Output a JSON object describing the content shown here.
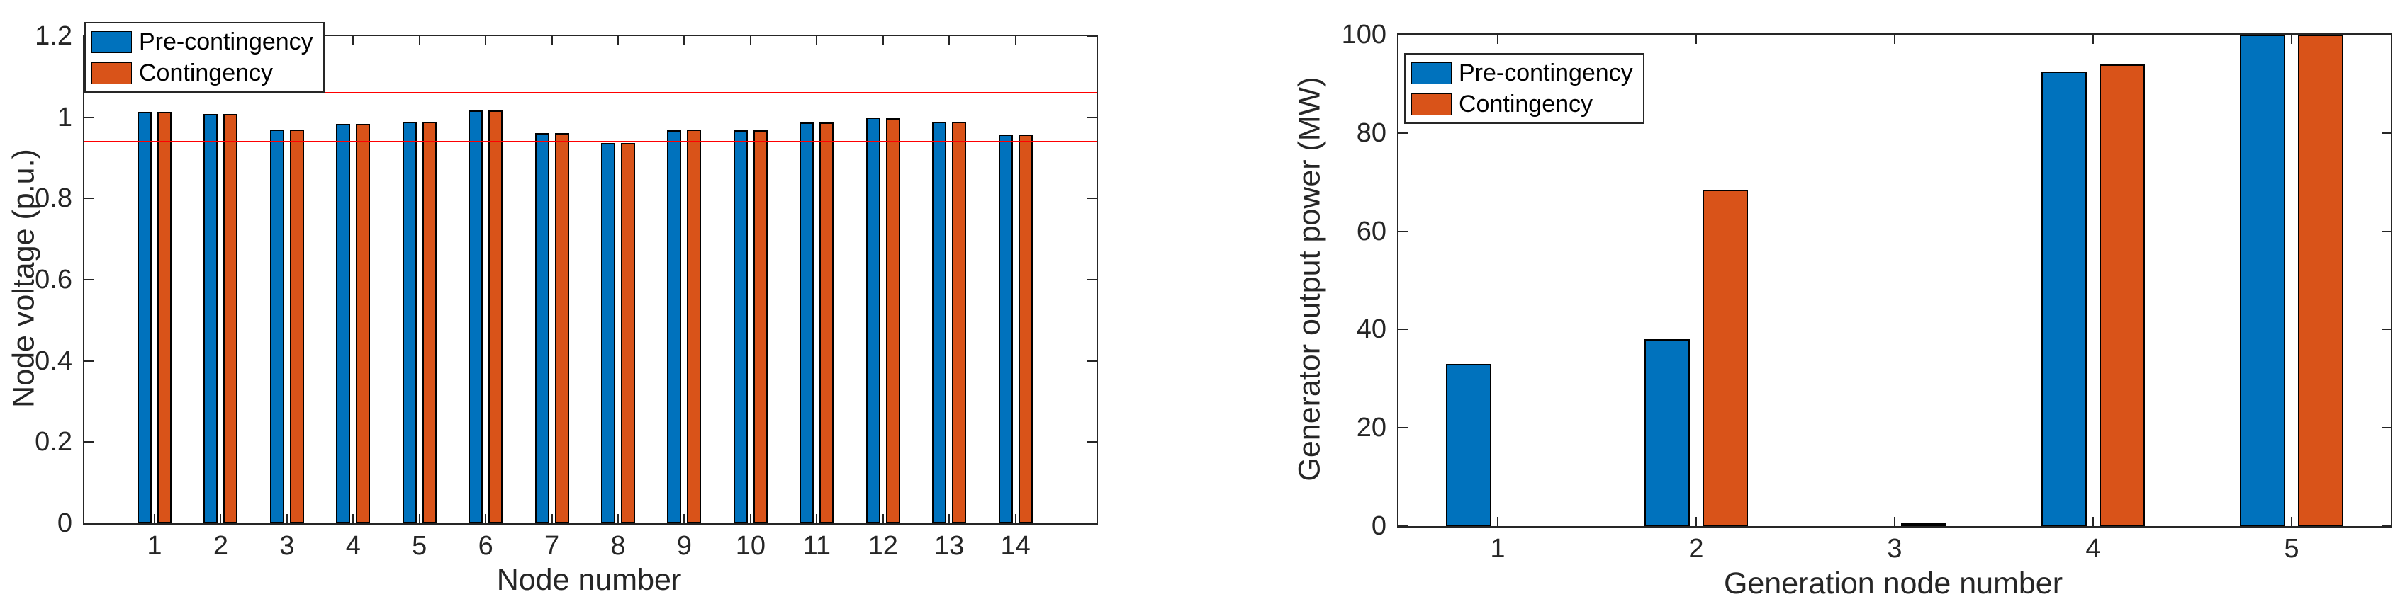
{
  "figure": {
    "background": "#FFFFFF"
  },
  "colors": {
    "pre_contingency": "#0072BD",
    "contingency": "#D95319",
    "limit_line": "#FF0000",
    "axis": "#262626",
    "bar_edge": "#000000"
  },
  "legend": {
    "pre_label": "Pre-contingency",
    "cont_label": "Contingency"
  },
  "chart_data": [
    {
      "type": "bar",
      "title": "",
      "xlabel": "Node number",
      "ylabel": "Node voltage (p.u.)",
      "categories": [
        "1",
        "2",
        "3",
        "4",
        "5",
        "6",
        "7",
        "8",
        "9",
        "10",
        "11",
        "12",
        "13",
        "14"
      ],
      "series": [
        {
          "name": "Pre-contingency",
          "color": "#0072BD",
          "values": [
            1.014,
            1.009,
            0.97,
            0.984,
            0.989,
            1.016,
            0.961,
            0.937,
            0.968,
            0.968,
            0.988,
            0.999,
            0.989,
            0.957
          ]
        },
        {
          "name": "Contingency",
          "color": "#D95319",
          "values": [
            1.013,
            1.008,
            0.97,
            0.983,
            0.989,
            1.016,
            0.961,
            0.937,
            0.97,
            0.968,
            0.988,
            0.998,
            0.989,
            0.957
          ]
        }
      ],
      "ylim": [
        0,
        1.2
      ],
      "yticks": [
        0,
        0.2,
        0.4,
        0.6,
        0.8,
        1,
        1.2
      ],
      "ytick_labels": [
        "0",
        "0.2",
        "0.4",
        "0.6",
        "0.8",
        "1",
        "1.2"
      ],
      "limit_lines": [
        1.06,
        0.94
      ],
      "legend_position": "top-left",
      "grid": false
    },
    {
      "type": "bar",
      "title": "",
      "xlabel": "Generation node number",
      "ylabel": "Generator output power (MW)",
      "categories": [
        "1",
        "2",
        "3",
        "4",
        "5"
      ],
      "series": [
        {
          "name": "Pre-contingency",
          "color": "#0072BD",
          "values": [
            33,
            38,
            0,
            92.5,
            100
          ]
        },
        {
          "name": "Contingency",
          "color": "#D95319",
          "values": [
            0,
            68.5,
            0.6,
            94,
            100
          ]
        }
      ],
      "ylim": [
        0,
        100
      ],
      "yticks": [
        0,
        20,
        40,
        60,
        80,
        100
      ],
      "ytick_labels": [
        "0",
        "20",
        "40",
        "60",
        "80",
        "100"
      ],
      "limit_lines": [],
      "legend_position": "top-left",
      "grid": false
    }
  ]
}
